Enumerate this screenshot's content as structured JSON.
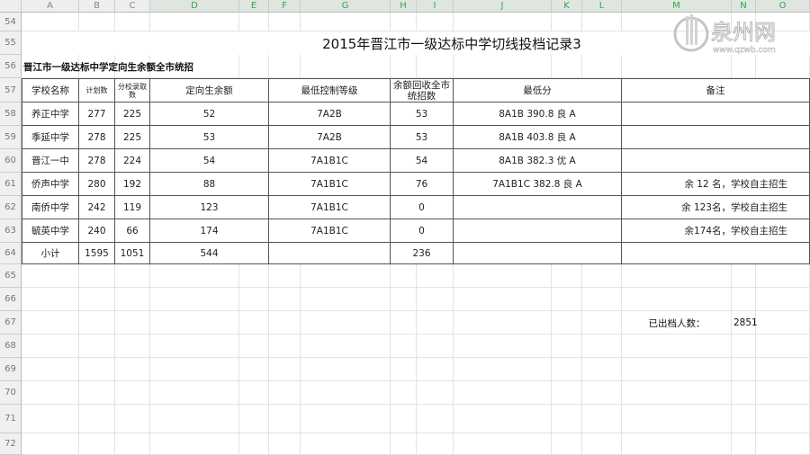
{
  "columns": [
    "A",
    "B",
    "C",
    "D",
    "E",
    "F",
    "G",
    "H",
    "I",
    "J",
    "K",
    "L",
    "M",
    "N",
    "O"
  ],
  "selected_columns": [
    "D",
    "E",
    "F",
    "G",
    "H",
    "I",
    "J",
    "K",
    "L",
    "M",
    "N",
    "O"
  ],
  "row_numbers": [
    "54",
    "55",
    "56",
    "57",
    "58",
    "59",
    "60",
    "61",
    "62",
    "63",
    "64",
    "65",
    "66",
    "67",
    "68",
    "69",
    "70",
    "71",
    "72"
  ],
  "sheet": {
    "title": "2015年晋江市一级达标中学切线投档记录3",
    "subtitle": "晋江市一级达标中学定向生余额全市统招",
    "table": {
      "header": [
        "学校名称",
        "计划数",
        "分校录取数",
        "定向生余额",
        "最低控制等级",
        "余额回收全市统招数",
        "最低分",
        "备注"
      ],
      "rows": [
        [
          "养正中学",
          "277",
          "225",
          "52",
          "7A2B",
          "53",
          "8A1B 390.8 良 A",
          ""
        ],
        [
          "季延中学",
          "278",
          "225",
          "53",
          "7A2B",
          "53",
          "8A1B 403.8 良 A",
          ""
        ],
        [
          "晋江一中",
          "278",
          "224",
          "54",
          "7A1B1C",
          "54",
          "8A1B 382.3 优 A",
          ""
        ],
        [
          "侨声中学",
          "280",
          "192",
          "88",
          "7A1B1C",
          "76",
          "7A1B1C 382.8 良 A",
          "余  12  名，学校自主招生"
        ],
        [
          "南侨中学",
          "242",
          "119",
          "123",
          "7A1B1C",
          "0",
          "",
          "余 123名，学校自主招生"
        ],
        [
          "毓英中学",
          "240",
          "66",
          "174",
          "7A1B1C",
          "0",
          "",
          "余174名，学校自主招生"
        ],
        [
          "小计",
          "1595",
          "1051",
          "544",
          "",
          "236",
          "",
          ""
        ]
      ]
    },
    "archived_label": "已出档人数：",
    "archived_value": "2851"
  },
  "watermark": {
    "text": "泉州网",
    "url_text": "www.qzwb.com"
  },
  "colors": {
    "selected_header_text": "#2aa84a",
    "grid": "#e3e3e3",
    "table_border": "#555555"
  }
}
